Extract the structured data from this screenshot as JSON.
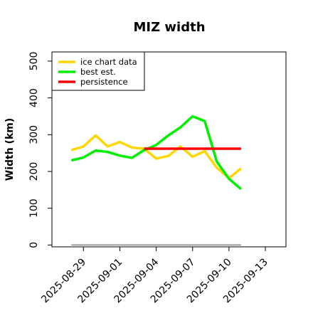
{
  "chart_data": {
    "type": "line",
    "title": "MIZ width",
    "xlabel": "",
    "ylabel": "Width (km)",
    "x_ticks": [
      "2025-08-29",
      "2025-09-01",
      "2025-09-04",
      "2025-09-07",
      "2025-09-10",
      "2025-09-13"
    ],
    "x_tick_days": [
      0,
      3,
      6,
      9,
      12,
      15
    ],
    "xlim_days": [
      -2.6,
      16.7
    ],
    "y_ticks": [
      0,
      100,
      200,
      300,
      400,
      500
    ],
    "ylim": [
      -5,
      525
    ],
    "legend_position": "top-left",
    "baseline": {
      "y": 0,
      "x_range_days": [
        -1,
        13
      ],
      "color": "#808080"
    },
    "series": [
      {
        "name": "ice chart data",
        "color": "#FFD700",
        "x_days": [
          -1,
          0,
          1,
          2,
          3,
          4,
          5,
          6,
          7,
          8,
          9,
          10,
          11,
          12,
          13
        ],
        "values": [
          258,
          268,
          298,
          268,
          280,
          265,
          262,
          235,
          242,
          268,
          240,
          255,
          210,
          182,
          208
        ]
      },
      {
        "name": "best est.",
        "color": "#00EE00",
        "x_days": [
          -1,
          0,
          1,
          2,
          3,
          4,
          5,
          6,
          7,
          8,
          9,
          10,
          11,
          12,
          13
        ],
        "values": [
          230,
          238,
          257,
          253,
          243,
          237,
          258,
          272,
          298,
          320,
          350,
          337,
          227,
          180,
          152
        ]
      },
      {
        "name": "persistence",
        "color": "#FF0000",
        "x_days": [
          5,
          13
        ],
        "values": [
          262,
          262
        ]
      }
    ]
  }
}
